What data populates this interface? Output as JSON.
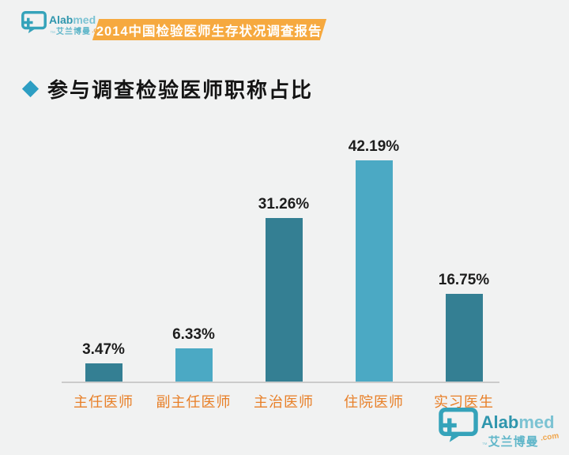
{
  "page": {
    "background": "#f1f2f2"
  },
  "header": {
    "banner_text": "2014中国检验医师生存状况调查报告",
    "banner_color": "#f6a93f"
  },
  "logo": {
    "brand_bold": "Alab",
    "brand_light": "med",
    "domain": ".com",
    "chinese": "艾兰博曼",
    "trademark": "™",
    "teal": "#35a3ba"
  },
  "section": {
    "title": "参与调查检验医师职称占比",
    "bullet_color": "#2d9ec3"
  },
  "chart_data": {
    "type": "bar",
    "title": "参与调查检验医师职称占比",
    "categories": [
      "主任医师",
      "副主任医师",
      "主治医师",
      "住院医师",
      "实习医生"
    ],
    "values": [
      3.47,
      6.33,
      31.26,
      42.19,
      16.75
    ],
    "labels": [
      "3.47%",
      "6.33%",
      "31.26%",
      "42.19%",
      "16.75%"
    ],
    "xlabel": "",
    "ylabel": "",
    "ylim": [
      0,
      45
    ],
    "grid": false,
    "legend": false,
    "bar_colors": [
      "#347f93",
      "#4ba9c4",
      "#347f93",
      "#4ba9c4",
      "#347f93"
    ],
    "value_label_color": "#1d1d1d",
    "category_color": "#e87f27",
    "axis_color": "#cbcbcb"
  }
}
